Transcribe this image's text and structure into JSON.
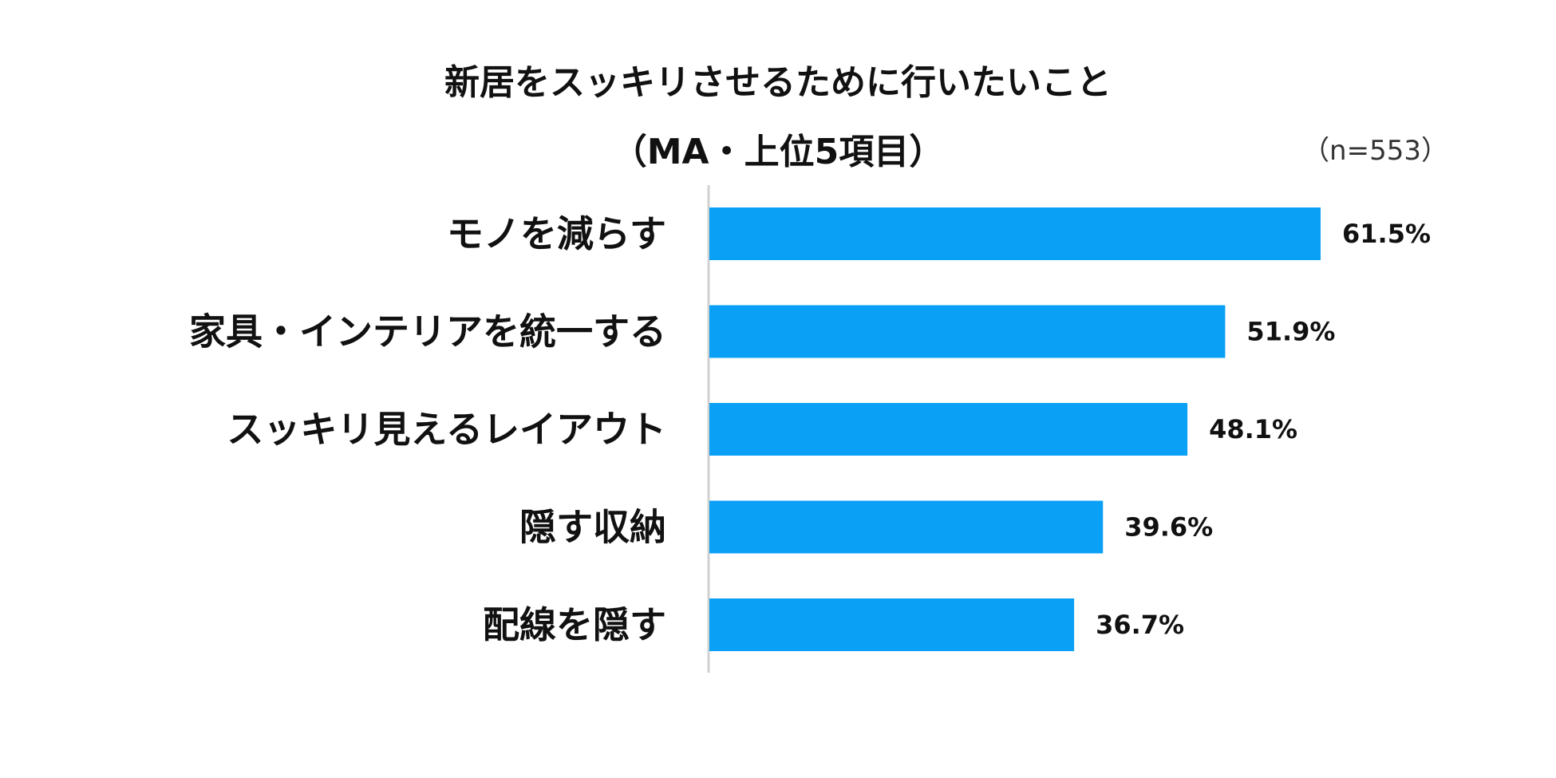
{
  "chart_data": {
    "type": "bar",
    "orientation": "horizontal",
    "title": "新居をスッキリさせるために行いたいこと",
    "subtitle": "（MA・上位5項目）",
    "sample_size": "（n=553）",
    "categories": [
      "モノを減らす",
      "家具・インテリアを統一する",
      "スッキリ見えるレイアウト",
      "隠す収納",
      "配線を隠す"
    ],
    "values": [
      61.5,
      51.9,
      48.1,
      39.6,
      36.7
    ],
    "value_labels": [
      "61.5%",
      "51.9%",
      "48.1%",
      "39.6%",
      "36.7%"
    ],
    "unit": "%",
    "xlim": [
      0,
      100
    ],
    "grid": false,
    "legend": "none",
    "bar_color": "#0aa0f5",
    "axis_color": "#d0d0d0"
  }
}
